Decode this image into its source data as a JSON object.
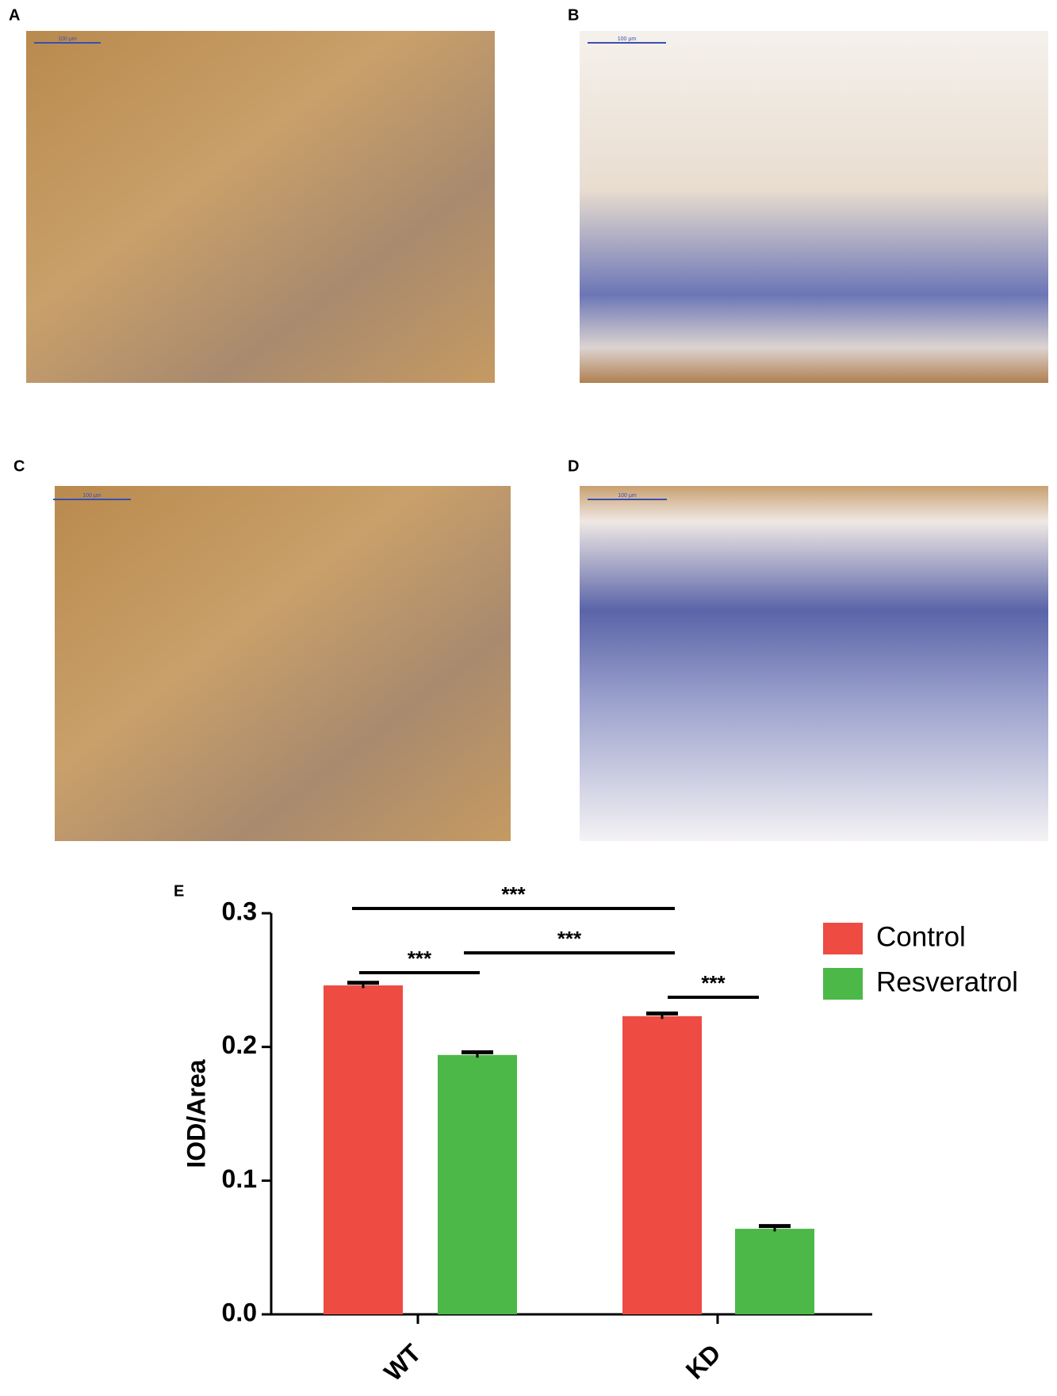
{
  "panels": [
    {
      "label": "A",
      "scale_bar": "100 μm"
    },
    {
      "label": "B",
      "scale_bar": "100 μm"
    },
    {
      "label": "C",
      "scale_bar": "100 μm"
    },
    {
      "label": "D",
      "scale_bar": "100 μm"
    }
  ],
  "chart_label": "E",
  "chart_data": {
    "type": "bar",
    "y_label": "IOD/Area",
    "categories": [
      "WT",
      "KD"
    ],
    "series": [
      {
        "name": "Control",
        "color": "#ee4b43",
        "values": [
          0.246,
          0.223
        ],
        "errors": [
          0.002,
          0.002
        ]
      },
      {
        "name": "Resveratrol",
        "color": "#4cb848",
        "values": [
          0.194,
          0.064
        ],
        "errors": [
          0.002,
          0.002
        ]
      }
    ],
    "ylim": [
      0,
      0.3
    ],
    "yticks": [
      {
        "value": 0,
        "label": "0.0"
      },
      0.1,
      0.2,
      0.3
    ],
    "annotations": [
      "***",
      "***",
      "***",
      "***"
    ],
    "legend": "top-right"
  }
}
